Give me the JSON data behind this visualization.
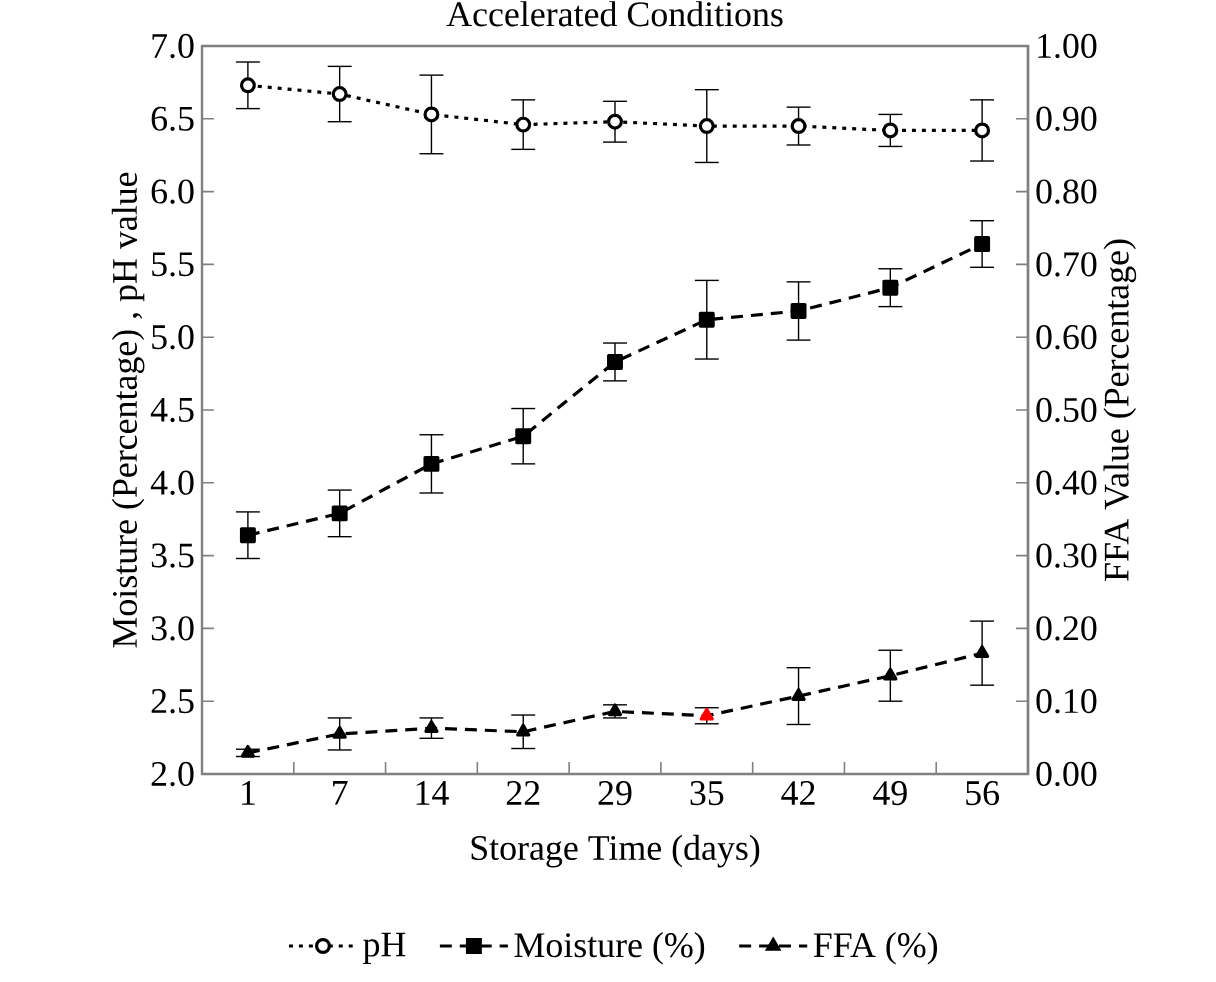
{
  "chart_data": {
    "type": "line",
    "title": "Accelerated Conditions",
    "xlabel": "Storage Time (days)",
    "ylabel": "Moisture (Percentage) , pH value",
    "y2label": "FFA Value (Percentage)",
    "categories": [
      "1",
      "7",
      "14",
      "22",
      "29",
      "35",
      "42",
      "49",
      "56"
    ],
    "ylim": [
      2,
      7
    ],
    "yticks": [
      {
        "value": 2,
        "label": "2.0"
      },
      {
        "value": 2.5,
        "label": "2.5"
      },
      {
        "value": 3,
        "label": "3.0"
      },
      {
        "value": 3.5,
        "label": "3.5"
      },
      {
        "value": 4,
        "label": "4.0"
      },
      {
        "value": 4.5,
        "label": "4.5"
      },
      {
        "value": 5,
        "label": "5.0"
      },
      {
        "value": 5.5,
        "label": "5.5"
      },
      {
        "value": 6,
        "label": "6.0"
      },
      {
        "value": 6.5,
        "label": "6.5"
      },
      {
        "value": 7,
        "label": "7.0"
      }
    ],
    "y2lim": [
      0,
      1
    ],
    "y2ticks": [
      {
        "value": 0,
        "label": "0.00"
      },
      {
        "value": 0.1,
        "label": "0.10"
      },
      {
        "value": 0.2,
        "label": "0.20"
      },
      {
        "value": 0.3,
        "label": "0.30"
      },
      {
        "value": 0.4,
        "label": "0.40"
      },
      {
        "value": 0.5,
        "label": "0.50"
      },
      {
        "value": 0.6,
        "label": "0.60"
      },
      {
        "value": 0.7,
        "label": "0.70"
      },
      {
        "value": 0.8,
        "label": "0.80"
      },
      {
        "value": 0.9,
        "label": "0.90"
      },
      {
        "value": 1,
        "label": "1.00"
      }
    ],
    "legend": "bottom",
    "series": [
      {
        "name": "pH",
        "color": "#000000",
        "marker": "circle",
        "line_style": "dotted",
        "values": [
          6.73,
          6.67,
          6.53,
          6.46,
          6.48,
          6.45,
          6.45,
          6.42,
          6.42
        ],
        "errors": [
          0.16,
          0.19,
          0.27,
          0.17,
          0.14,
          0.25,
          0.13,
          0.11,
          0.21
        ]
      },
      {
        "name": "Moisture (%)",
        "color": "#000000",
        "marker": "square",
        "line_style": "dashed",
        "values": [
          3.64,
          3.79,
          4.13,
          4.32,
          4.83,
          5.12,
          5.18,
          5.34,
          5.64
        ],
        "errors": [
          0.16,
          0.16,
          0.2,
          0.19,
          0.13,
          0.27,
          0.2,
          0.13,
          0.16
        ]
      },
      {
        "name": "FFA (%)",
        "color": "#000000",
        "colors": [
          "#000000",
          "#000000",
          "#000000",
          "#000000",
          "#000000",
          "#ff0000",
          "#000000",
          "#000000",
          "#000000"
        ],
        "marker": "triangle",
        "line_style": "dashed",
        "axis": "y2",
        "values": [
          0.029,
          0.055,
          0.063,
          0.058,
          0.086,
          0.08,
          0.107,
          0.135,
          0.166
        ],
        "errors": [
          0.005,
          0.022,
          0.014,
          0.023,
          0.009,
          0.011,
          0.039,
          0.035,
          0.044
        ]
      }
    ]
  }
}
